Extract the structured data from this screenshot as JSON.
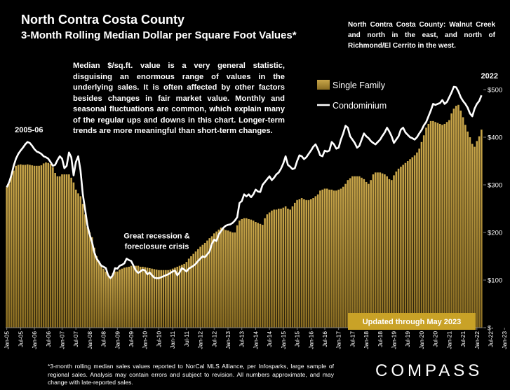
{
  "title": "North Contra Costa County",
  "subtitle": "3-Month Rolling Median Dollar per Square Foot Values*",
  "region_note": "North Contra Costa County: Walnut Creek and north in the east, and north of Richmond/El Cerrito in the west.",
  "explanation": "Median $/sq.ft. value is a very general statistic, disguising an enormous range of values in the underlying sales. It is often affected by other factors besides changes in fair market value. Monthly and seasonal fluctuations are common, which explain many of the regular ups and downs in this chart. Longer-term trends are more meaningful than short-term changes.",
  "footnote": "*3-month rolling median sales values reported to NorCal MLS Alliance, per Infosparks, large sample of regional sales. Analysis may contain errors and subject to revision. All numbers approximate, and may change with late-reported sales.",
  "brand": "COMPASS",
  "chart_data": {
    "type": "bar",
    "title": "3-Month Rolling Median Dollar per Square Foot Values*",
    "ylim": [
      0,
      500
    ],
    "y_ticks": [
      0,
      100,
      200,
      300,
      400,
      500
    ],
    "y_tick_labels": [
      "$-",
      "$100",
      "$200",
      "$300",
      "$400",
      "$500"
    ],
    "x_tick_labels": [
      "Jan-05",
      "Jul-05",
      "Jan-06",
      "Jul-06",
      "Jan-07",
      "Jul-07",
      "Jan-08",
      "Jul-08",
      "Jan-09",
      "Jul-09",
      "Jan-10",
      "Jul-10",
      "Jan-11",
      "Jul-11",
      "Jan-12",
      "Jul-12",
      "Jan-13",
      "Jul-13",
      "Jan-14",
      "Jul-14",
      "Jan-15",
      "Jul-15",
      "Jan-16",
      "Jul-16",
      "Jan-17",
      "Jul-17",
      "Jan-18",
      "Jul-18",
      "Jan-19",
      "Jul-19",
      "Jan-20",
      "Jul-20",
      "Jan-21",
      "Jul-21",
      "Jan-22",
      "Jul-22",
      "Jan-23"
    ],
    "legend": "top",
    "grid": false,
    "colors": {
      "bar": "#c9a64a",
      "bar_dark": "#8a6d22",
      "line": "#ffffff",
      "updated_box": "#c9a227"
    },
    "annotations": [
      {
        "text": "2005-06",
        "x": "Jul-05",
        "y": 410
      },
      {
        "text": "Great recession & foreclosure crisis",
        "x": "Jul-10",
        "y": 170
      },
      {
        "text": "2022",
        "x": "Jan-22",
        "y": 530
      },
      {
        "text": "Updated through May 2023",
        "x": "Jan-22",
        "y": 18
      }
    ],
    "series": [
      {
        "name": "Single Family",
        "kind": "bar",
        "x_start": "Jan-05",
        "values": [
          295,
          302,
          318,
          330,
          340,
          342,
          343,
          342,
          342,
          343,
          342,
          341,
          340,
          340,
          340,
          341,
          345,
          347,
          346,
          344,
          337,
          325,
          318,
          318,
          322,
          322,
          322,
          322,
          315,
          305,
          290,
          282,
          276,
          260,
          238,
          212,
          200,
          190,
          168,
          150,
          140,
          132,
          124,
          118,
          112,
          108,
          114,
          118,
          118,
          122,
          124,
          126,
          127,
          128,
          130,
          130,
          130,
          130,
          128,
          128,
          127,
          126,
          125,
          124,
          123,
          122,
          121,
          121,
          121,
          121,
          121,
          122,
          124,
          126,
          128,
          130,
          132,
          134,
          138,
          145,
          150,
          155,
          160,
          165,
          170,
          174,
          178,
          183,
          188,
          192,
          198,
          202,
          206,
          210,
          208,
          205,
          204,
          202,
          200,
          200,
          215,
          225,
          228,
          230,
          230,
          228,
          227,
          225,
          222,
          220,
          218,
          216,
          230,
          238,
          242,
          246,
          248,
          248,
          250,
          250,
          252,
          255,
          250,
          248,
          255,
          262,
          268,
          270,
          272,
          270,
          268,
          268,
          270,
          272,
          276,
          280,
          288,
          290,
          292,
          292,
          290,
          290,
          288,
          288,
          290,
          292,
          296,
          302,
          310,
          314,
          318,
          318,
          318,
          318,
          315,
          312,
          306,
          302,
          310,
          322,
          326,
          326,
          326,
          324,
          322,
          318,
          312,
          310,
          320,
          328,
          334,
          338,
          342,
          346,
          350,
          354,
          358,
          362,
          368,
          376,
          390,
          404,
          420,
          428,
          434,
          434,
          432,
          430,
          428,
          426,
          428,
          432,
          436,
          450,
          460,
          466,
          468,
          456,
          442,
          426,
          412,
          400,
          386,
          380,
          392,
          402,
          416
        ]
      },
      {
        "name": "Condominium",
        "kind": "line",
        "x_start": "Jan-05",
        "values": [
          295,
          305,
          320,
          340,
          355,
          365,
          372,
          378,
          385,
          390,
          388,
          382,
          375,
          370,
          368,
          365,
          360,
          358,
          355,
          348,
          340,
          342,
          352,
          360,
          355,
          335,
          340,
          368,
          358,
          320,
          348,
          360,
          330,
          280,
          248,
          215,
          195,
          180,
          158,
          145,
          138,
          130,
          128,
          125,
          110,
          104,
          110,
          125,
          124,
          130,
          132,
          135,
          145,
          142,
          140,
          130,
          120,
          115,
          118,
          122,
          120,
          112,
          116,
          110,
          105,
          104,
          104,
          106,
          108,
          110,
          112,
          115,
          118,
          120,
          110,
          116,
          125,
          122,
          118,
          124,
          127,
          130,
          134,
          140,
          145,
          150,
          148,
          154,
          160,
          176,
          185,
          182,
          196,
          203,
          210,
          214,
          216,
          217,
          220,
          225,
          232,
          262,
          266,
          280,
          276,
          280,
          274,
          280,
          290,
          286,
          285,
          300,
          306,
          312,
          318,
          310,
          315,
          322,
          326,
          334,
          345,
          360,
          342,
          338,
          333,
          335,
          350,
          362,
          360,
          354,
          358,
          365,
          372,
          380,
          385,
          375,
          362,
          360,
          372,
          370,
          372,
          390,
          385,
          376,
          378,
          395,
          408,
          424,
          420,
          402,
          395,
          388,
          378,
          382,
          395,
          408,
          402,
          398,
          392,
          388,
          385,
          390,
          395,
          403,
          410,
          420,
          412,
          402,
          388,
          395,
          402,
          416,
          420,
          410,
          405,
          400,
          398,
          395,
          400,
          408,
          415,
          425,
          432,
          444,
          456,
          470,
          468,
          470,
          472,
          478,
          470,
          474,
          484,
          494,
          506,
          505,
          496,
          484,
          476,
          470,
          462,
          450,
          444,
          460,
          470,
          476,
          488
        ]
      }
    ]
  }
}
